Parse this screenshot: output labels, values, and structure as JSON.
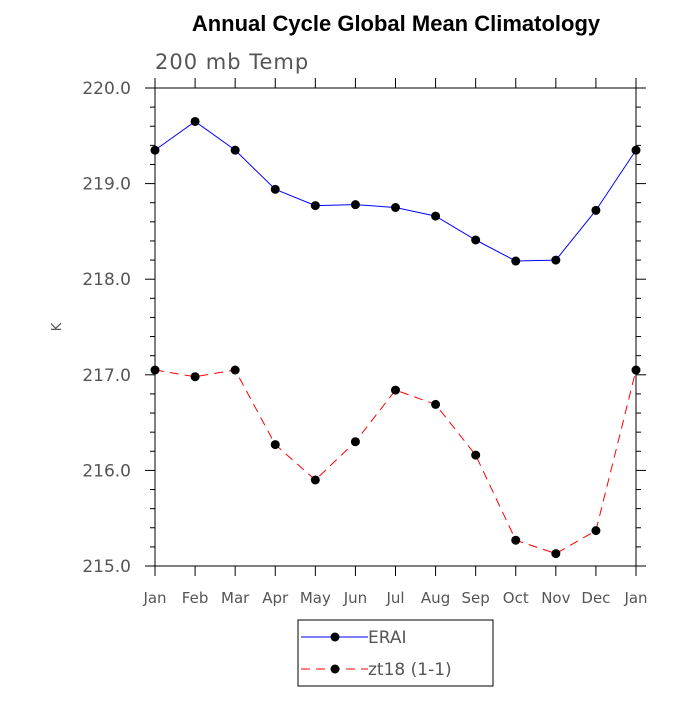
{
  "chart_data": {
    "type": "line",
    "title": "Annual Cycle Global Mean Climatology",
    "subtitle": "200 mb Temp",
    "xlabel": "",
    "ylabel": "K",
    "categories": [
      "Jan",
      "Feb",
      "Mar",
      "Apr",
      "May",
      "Jun",
      "Jul",
      "Aug",
      "Sep",
      "Oct",
      "Nov",
      "Dec",
      "Jan"
    ],
    "ylim": [
      215.0,
      220.0
    ],
    "yticks": [
      "215.0",
      "216.0",
      "217.0",
      "218.0",
      "219.0",
      "220.0"
    ],
    "grid": false,
    "legend_position": "bottom-center",
    "series": [
      {
        "name": "ERAI",
        "color": "#0000ff",
        "dash": "solid",
        "marker": "circle",
        "values": [
          219.35,
          219.65,
          219.35,
          218.94,
          218.77,
          218.78,
          218.75,
          218.66,
          218.41,
          218.19,
          218.2,
          218.72,
          219.35
        ]
      },
      {
        "name": "zt18 (1-1)",
        "color": "#ff0000",
        "dash": "dashed",
        "marker": "circle",
        "values": [
          217.05,
          216.98,
          217.05,
          216.27,
          215.9,
          216.3,
          216.84,
          216.69,
          216.16,
          215.27,
          215.13,
          215.37,
          217.05
        ]
      }
    ]
  }
}
